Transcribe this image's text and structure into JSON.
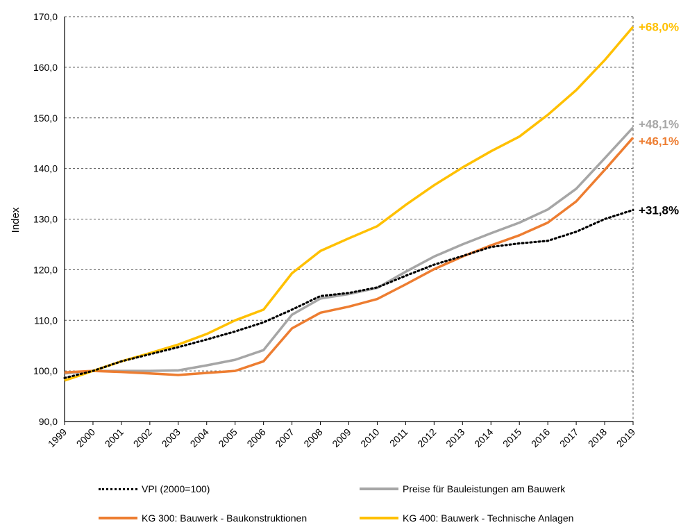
{
  "chart_data": {
    "type": "line",
    "title": "",
    "xlabel": "",
    "ylabel": "Index",
    "x": [
      "1999",
      "2000",
      "2001",
      "2002",
      "2003",
      "2004",
      "2005",
      "2006",
      "2007",
      "2008",
      "2009",
      "2010",
      "2011",
      "2012",
      "2013",
      "2014",
      "2015",
      "2016",
      "2017",
      "2018",
      "2019"
    ],
    "ylim": [
      90,
      170
    ],
    "yticks": [
      "90,0",
      "100,0",
      "110,0",
      "120,0",
      "130,0",
      "140,0",
      "150,0",
      "160,0",
      "170,0"
    ],
    "grid": true,
    "legend_position": "bottom",
    "series": [
      {
        "name": "VPI (2000=100)",
        "style": "dotted",
        "color": "#000000",
        "values": [
          98.6,
          100.0,
          101.9,
          103.3,
          104.7,
          106.2,
          107.8,
          109.6,
          112.1,
          114.8,
          115.4,
          116.5,
          118.8,
          121.0,
          122.7,
          124.5,
          125.2,
          125.7,
          127.5,
          130.0,
          131.8
        ],
        "end_label": "+31,8%"
      },
      {
        "name": "Preise für Bauleistungen am Bauwerk",
        "style": "solid",
        "color": "#A6A6A6",
        "values": [
          99.5,
          100.0,
          100.0,
          100.0,
          100.1,
          101.1,
          102.2,
          104.1,
          111.1,
          114.3,
          115.2,
          116.4,
          119.6,
          122.6,
          125.0,
          127.2,
          129.3,
          131.9,
          136.0,
          142.0,
          148.1
        ],
        "end_label": "+48,1%"
      },
      {
        "name": "KG 300: Bauwerk - Baukonstruktionen",
        "style": "solid",
        "color": "#ED7D31",
        "values": [
          99.7,
          100.0,
          99.8,
          99.5,
          99.2,
          99.6,
          100.0,
          101.9,
          108.4,
          111.5,
          112.7,
          114.2,
          117.1,
          120.1,
          122.6,
          124.8,
          126.8,
          129.3,
          133.5,
          139.7,
          146.1
        ],
        "end_label": "+46,1%"
      },
      {
        "name": "KG 400: Bauwerk - Technische Anlagen",
        "style": "solid",
        "color": "#FFC000",
        "values": [
          98.1,
          100.0,
          101.9,
          103.5,
          105.2,
          107.3,
          110.0,
          112.1,
          119.3,
          123.7,
          126.2,
          128.6,
          132.8,
          136.7,
          140.2,
          143.4,
          146.3,
          150.6,
          155.5,
          161.4,
          168.0
        ],
        "end_label": "+68,0%"
      }
    ]
  },
  "legend": {
    "vpi": "VPI (2000=100)",
    "preise": "Preise für Bauleistungen am Bauwerk",
    "kg300": "KG 300: Bauwerk - Baukonstruktionen",
    "kg400": "KG 400: Bauwerk - Technische Anlagen"
  }
}
